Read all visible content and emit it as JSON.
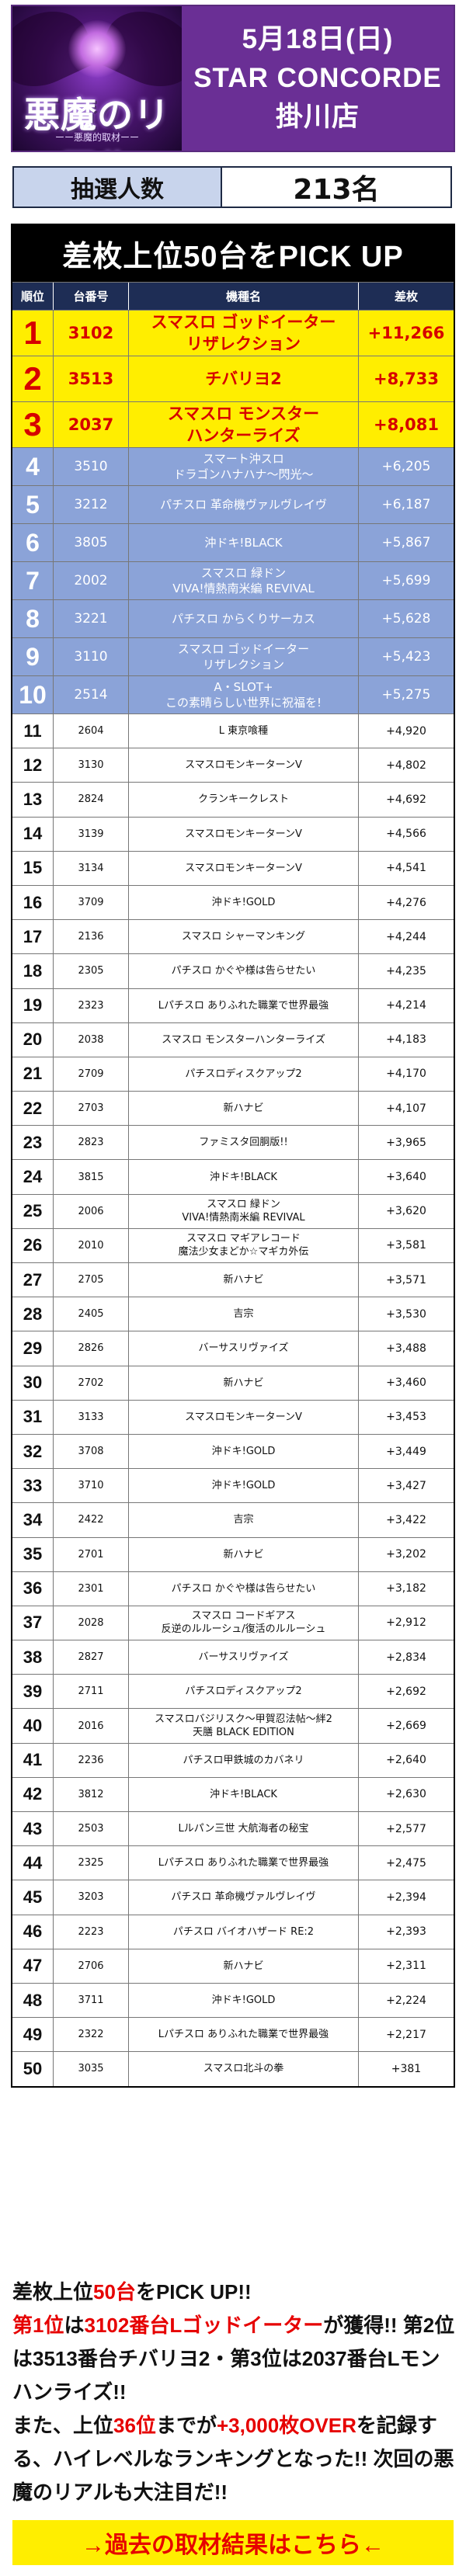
{
  "header": {
    "logo_text": "悪魔のリアル",
    "logo_sub": "ーー悪魔的取材ーー",
    "date": "5月18日(日)",
    "store_name": "STAR CONCORDE",
    "store_branch": "掛川店"
  },
  "lottery": {
    "label": "抽選人数",
    "value": "213名"
  },
  "ranking": {
    "title": "差枚上位50台をPICK UP",
    "columns": [
      "順位",
      "台番号",
      "機種名",
      "差枚"
    ],
    "rows": [
      {
        "rank": "1",
        "machine_no": "3102",
        "name": "スマスロ ゴッドイーター\nリザレクション",
        "diff": "+11,266"
      },
      {
        "rank": "2",
        "machine_no": "3513",
        "name": "チバリヨ2",
        "diff": "+8,733"
      },
      {
        "rank": "3",
        "machine_no": "2037",
        "name": "スマスロ モンスター\nハンターライズ",
        "diff": "+8,081"
      },
      {
        "rank": "4",
        "machine_no": "3510",
        "name": "スマート沖スロ\nドラゴンハナハナ～閃光～",
        "diff": "+6,205"
      },
      {
        "rank": "5",
        "machine_no": "3212",
        "name": "パチスロ 革命機ヴァルヴレイヴ",
        "diff": "+6,187"
      },
      {
        "rank": "6",
        "machine_no": "3805",
        "name": "沖ドキ!BLACK",
        "diff": "+5,867"
      },
      {
        "rank": "7",
        "machine_no": "2002",
        "name": "スマスロ 緑ドン\nVIVA!情熱南米編 REVIVAL",
        "diff": "+5,699"
      },
      {
        "rank": "8",
        "machine_no": "3221",
        "name": "パチスロ からくりサーカス",
        "diff": "+5,628"
      },
      {
        "rank": "9",
        "machine_no": "3110",
        "name": "スマスロ ゴッドイーター\nリザレクション",
        "diff": "+5,423"
      },
      {
        "rank": "10",
        "machine_no": "2514",
        "name": "A・SLOT+\nこの素晴らしい世界に祝福を!",
        "diff": "+5,275"
      },
      {
        "rank": "11",
        "machine_no": "2604",
        "name": "L 東京喰種",
        "diff": "+4,920"
      },
      {
        "rank": "12",
        "machine_no": "3130",
        "name": "スマスロモンキーターンV",
        "diff": "+4,802"
      },
      {
        "rank": "13",
        "machine_no": "2824",
        "name": "クランキークレスト",
        "diff": "+4,692"
      },
      {
        "rank": "14",
        "machine_no": "3139",
        "name": "スマスロモンキーターンV",
        "diff": "+4,566"
      },
      {
        "rank": "15",
        "machine_no": "3134",
        "name": "スマスロモンキーターンV",
        "diff": "+4,541"
      },
      {
        "rank": "16",
        "machine_no": "3709",
        "name": "沖ドキ!GOLD",
        "diff": "+4,276"
      },
      {
        "rank": "17",
        "machine_no": "2136",
        "name": "スマスロ シャーマンキング",
        "diff": "+4,244"
      },
      {
        "rank": "18",
        "machine_no": "2305",
        "name": "パチスロ かぐや様は告らせたい",
        "diff": "+4,235"
      },
      {
        "rank": "19",
        "machine_no": "2323",
        "name": "Lパチスロ ありふれた職業で世界最強",
        "diff": "+4,214"
      },
      {
        "rank": "20",
        "machine_no": "2038",
        "name": "スマスロ モンスターハンターライズ",
        "diff": "+4,183"
      },
      {
        "rank": "21",
        "machine_no": "2709",
        "name": "パチスロディスクアップ2",
        "diff": "+4,170"
      },
      {
        "rank": "22",
        "machine_no": "2703",
        "name": "新ハナビ",
        "diff": "+4,107"
      },
      {
        "rank": "23",
        "machine_no": "2823",
        "name": "ファミスタ回胴版!!",
        "diff": "+3,965"
      },
      {
        "rank": "24",
        "machine_no": "3815",
        "name": "沖ドキ!BLACK",
        "diff": "+3,640"
      },
      {
        "rank": "25",
        "machine_no": "2006",
        "name": "スマスロ 緑ドン\nVIVA!情熱南米編 REVIVAL",
        "diff": "+3,620"
      },
      {
        "rank": "26",
        "machine_no": "2010",
        "name": "スマスロ マギアレコード\n魔法少女まどか☆マギカ外伝",
        "diff": "+3,581"
      },
      {
        "rank": "27",
        "machine_no": "2705",
        "name": "新ハナビ",
        "diff": "+3,571"
      },
      {
        "rank": "28",
        "machine_no": "2405",
        "name": "吉宗",
        "diff": "+3,530"
      },
      {
        "rank": "29",
        "machine_no": "2826",
        "name": "バーサスリヴァイズ",
        "diff": "+3,488"
      },
      {
        "rank": "30",
        "machine_no": "2702",
        "name": "新ハナビ",
        "diff": "+3,460"
      },
      {
        "rank": "31",
        "machine_no": "3133",
        "name": "スマスロモンキーターンV",
        "diff": "+3,453"
      },
      {
        "rank": "32",
        "machine_no": "3708",
        "name": "沖ドキ!GOLD",
        "diff": "+3,449"
      },
      {
        "rank": "33",
        "machine_no": "3710",
        "name": "沖ドキ!GOLD",
        "diff": "+3,427"
      },
      {
        "rank": "34",
        "machine_no": "2422",
        "name": "吉宗",
        "diff": "+3,422"
      },
      {
        "rank": "35",
        "machine_no": "2701",
        "name": "新ハナビ",
        "diff": "+3,202"
      },
      {
        "rank": "36",
        "machine_no": "2301",
        "name": "パチスロ かぐや様は告らせたい",
        "diff": "+3,182"
      },
      {
        "rank": "37",
        "machine_no": "2028",
        "name": "スマスロ コードギアス\n反逆のルルーシュ/復活のルルーシュ",
        "diff": "+2,912"
      },
      {
        "rank": "38",
        "machine_no": "2827",
        "name": "バーサスリヴァイズ",
        "diff": "+2,834"
      },
      {
        "rank": "39",
        "machine_no": "2711",
        "name": "パチスロディスクアップ2",
        "diff": "+2,692"
      },
      {
        "rank": "40",
        "machine_no": "2016",
        "name": "スマスロバジリスク～甲賀忍法帖～絆2\n天膳 BLACK EDITION",
        "diff": "+2,669"
      },
      {
        "rank": "41",
        "machine_no": "2236",
        "name": "パチスロ甲鉄城のカバネリ",
        "diff": "+2,640"
      },
      {
        "rank": "42",
        "machine_no": "3812",
        "name": "沖ドキ!BLACK",
        "diff": "+2,630"
      },
      {
        "rank": "43",
        "machine_no": "2503",
        "name": "Lルパン三世 大航海者の秘宝",
        "diff": "+2,577"
      },
      {
        "rank": "44",
        "machine_no": "2325",
        "name": "Lパチスロ ありふれた職業で世界最強",
        "diff": "+2,475"
      },
      {
        "rank": "45",
        "machine_no": "3203",
        "name": "パチスロ 革命機ヴァルヴレイヴ",
        "diff": "+2,394"
      },
      {
        "rank": "46",
        "machine_no": "2223",
        "name": "パチスロ バイオハザード RE:2",
        "diff": "+2,393"
      },
      {
        "rank": "47",
        "machine_no": "2706",
        "name": "新ハナビ",
        "diff": "+2,311"
      },
      {
        "rank": "48",
        "machine_no": "3711",
        "name": "沖ドキ!GOLD",
        "diff": "+2,224"
      },
      {
        "rank": "49",
        "machine_no": "2322",
        "name": "Lパチスロ ありふれた職業で世界最強",
        "diff": "+2,217"
      },
      {
        "rank": "50",
        "machine_no": "3035",
        "name": "スマスロ北斗の拳",
        "diff": "+381"
      }
    ]
  },
  "summary": {
    "parts": [
      {
        "text": "差枚上位",
        "red": false
      },
      {
        "text": "50台",
        "red": true
      },
      {
        "text": "をPICK UP!!\n",
        "red": false
      },
      {
        "text": "第1位",
        "red": true
      },
      {
        "text": "は",
        "red": false
      },
      {
        "text": "3102番台Lゴッドイーター",
        "red": true
      },
      {
        "text": "が獲得!! 第2位は3513番台チバリヨ2・第3位は2037番台Lモンハンライズ!!\nまた、上位",
        "red": false
      },
      {
        "text": "36位",
        "red": true
      },
      {
        "text": "までが",
        "red": false
      },
      {
        "text": "+3,000枚OVER",
        "red": true
      },
      {
        "text": "を記録する、ハイレベルなランキングとなった!! 次回の悪魔のリアルも大注目だ!!",
        "red": false
      }
    ]
  },
  "footer": {
    "link_label": "→過去の取材結果はこちら←"
  },
  "colors": {
    "header_purple": "#6a2f95",
    "top3_bg": "#ffee00",
    "top3_text": "#d60000",
    "ranks_4_10_bg": "#8ba3d8",
    "table_header_bg": "#1e2d55",
    "accent_red": "#e60000"
  }
}
